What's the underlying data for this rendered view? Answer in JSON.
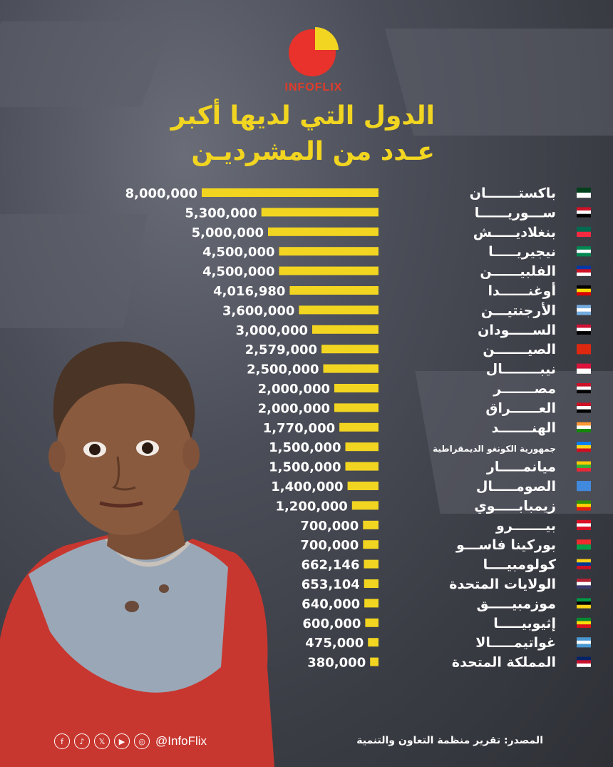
{
  "header": {
    "brand": "INFOFLIX"
  },
  "colors": {
    "bar": "#f2d521",
    "title": "#f2d521",
    "brand": "#e23b2b",
    "background": "#45474f"
  },
  "footer": {
    "handle": "@InfoFlix",
    "source": "المصدر: تقرير منظمة التعاون والتنمية",
    "icons": [
      "facebook-icon",
      "tiktok-icon",
      "x-icon",
      "youtube-icon",
      "instagram-icon"
    ]
  },
  "chart_data": {
    "type": "bar",
    "orientation": "horizontal",
    "title_line1": "الدول التي لديها أكبر",
    "title_line2": "عـدد من المشرديـن",
    "xlabel": "",
    "ylabel": "",
    "categories": [
      "باكستـــــــان",
      "ســـوريــــــا",
      "بنغلاديـــــش",
      "نيجيريـــــا",
      "الفلبيــــــن",
      "أوغنــــــدا",
      "الأرجنتيـــن",
      "الســـــودان",
      "الصيـــــــن",
      "نيبــــــــال",
      "مصـــــــر",
      "العــــــراق",
      "الهنـــــــد",
      "جمهورية الكونغو الديمقراطية",
      "ميانمـــــار",
      "الصومـــــال",
      "زيمبابـــــوي",
      "بيـــــــرو",
      "بوركينا فاســـو",
      "كولومبيــــا",
      "الولايات المتحدة",
      "موزمبيـــــق",
      "إثيوبيـــــا",
      "غواتيمـــــالا",
      "المملكة المتحدة"
    ],
    "values": [
      8000000,
      5300000,
      5000000,
      4500000,
      4500000,
      4016980,
      3600000,
      3000000,
      2579000,
      2500000,
      2000000,
      2000000,
      1770000,
      1500000,
      1500000,
      1400000,
      1200000,
      700000,
      700000,
      662146,
      653104,
      640000,
      600000,
      475000,
      380000
    ],
    "value_labels": [
      "8,000,000",
      "5,300,000",
      "5,000,000",
      "4,500,000",
      "4,500,000",
      "4,016,980",
      "3,600,000",
      "3,000,000",
      "2,579,000",
      "2,500,000",
      "2,000,000",
      "2,000,000",
      "1,770,000",
      "1,500,000",
      "1,500,000",
      "1,400,000",
      "1,200,000",
      "700,000",
      "700,000",
      "662,146",
      "653,104",
      "640,000",
      "600,000",
      "475,000",
      "380,000"
    ],
    "flags": [
      "pakistan-flag-icon",
      "syria-flag-icon",
      "bangladesh-flag-icon",
      "nigeria-flag-icon",
      "philippines-flag-icon",
      "uganda-flag-icon",
      "argentina-flag-icon",
      "sudan-flag-icon",
      "china-flag-icon",
      "nepal-flag-icon",
      "egypt-flag-icon",
      "iraq-flag-icon",
      "india-flag-icon",
      "dr-congo-flag-icon",
      "myanmar-flag-icon",
      "somalia-flag-icon",
      "zimbabwe-flag-icon",
      "peru-flag-icon",
      "burkina-faso-flag-icon",
      "colombia-flag-icon",
      "united-states-flag-icon",
      "mozambique-flag-icon",
      "ethiopia-flag-icon",
      "guatemala-flag-icon",
      "united-kingdom-flag-icon"
    ]
  }
}
